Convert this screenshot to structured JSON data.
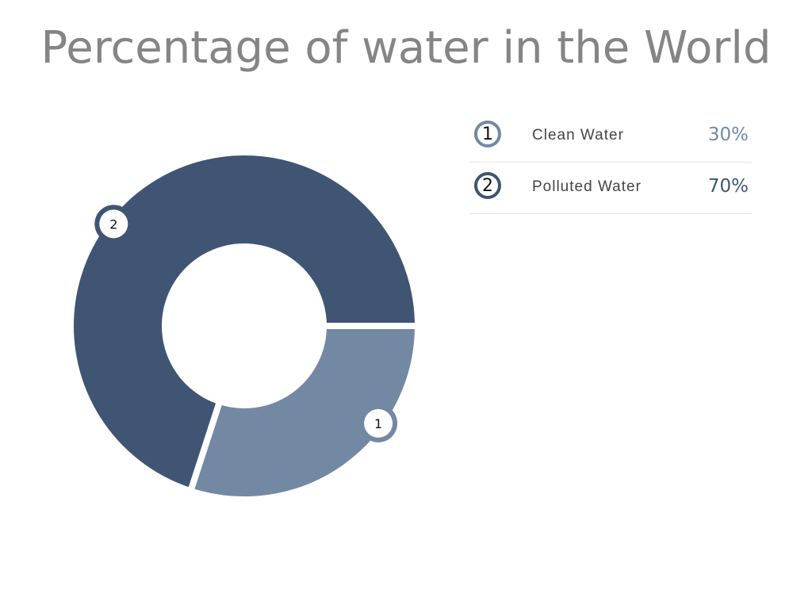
{
  "chart_data": {
    "type": "pie",
    "variant": "donut",
    "title": "Percentage of water in the World",
    "slices": [
      {
        "index": "1",
        "label": "Clean Water",
        "value": 30,
        "display": "30%",
        "color": "#7388a3"
      },
      {
        "index": "2",
        "label": "Polluted Water",
        "value": 70,
        "display": "70%",
        "color": "#3f5573"
      }
    ],
    "legend_position": "right"
  }
}
